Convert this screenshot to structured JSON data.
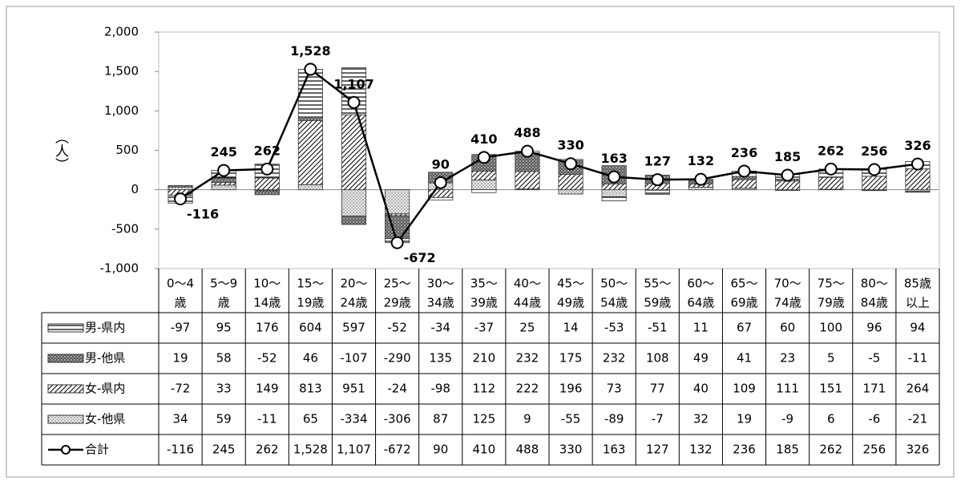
{
  "chart_data": {
    "type": "bar",
    "y_label": "（人）",
    "categories": [
      [
        "0～4",
        "歳"
      ],
      [
        "5～9",
        "歳"
      ],
      [
        "10～",
        "14歳"
      ],
      [
        "15～",
        "19歳"
      ],
      [
        "20～",
        "24歳"
      ],
      [
        "25～",
        "29歳"
      ],
      [
        "30～",
        "34歳"
      ],
      [
        "35～",
        "39歳"
      ],
      [
        "40～",
        "44歳"
      ],
      [
        "45～",
        "49歳"
      ],
      [
        "50～",
        "54歳"
      ],
      [
        "55～",
        "59歳"
      ],
      [
        "60～",
        "64歳"
      ],
      [
        "65～",
        "69歳"
      ],
      [
        "70～",
        "74歳"
      ],
      [
        "75～",
        "79歳"
      ],
      [
        "80～",
        "84歳"
      ],
      [
        "85歳",
        "以上"
      ]
    ],
    "ylim": [
      -1000,
      2000
    ],
    "yticks": [
      {
        "value": -1000,
        "label": "-1,000"
      },
      -500,
      0,
      500,
      {
        "value": 1000,
        "label": "1,000"
      },
      {
        "value": 1500,
        "label": "1,500"
      },
      {
        "value": 2000,
        "label": "2,000"
      }
    ],
    "negative_tick_color": "#e00000",
    "series": [
      {
        "name": "男-県内",
        "pattern": "horizontal",
        "values": [
          -97,
          95,
          176,
          604,
          597,
          -52,
          -34,
          -37,
          25,
          14,
          -53,
          -51,
          11,
          67,
          60,
          100,
          96,
          94
        ]
      },
      {
        "name": "男-他県",
        "pattern": "dense",
        "values": [
          19,
          58,
          -52,
          46,
          -107,
          -290,
          135,
          210,
          232,
          175,
          232,
          108,
          49,
          41,
          23,
          5,
          -5,
          -11
        ]
      },
      {
        "name": "女-県内",
        "pattern": "diagonal",
        "values": [
          -72,
          33,
          149,
          813,
          951,
          -24,
          -98,
          112,
          222,
          196,
          73,
          77,
          40,
          109,
          111,
          151,
          171,
          264
        ]
      },
      {
        "name": "女-他県",
        "pattern": "dotted",
        "values": [
          34,
          59,
          -11,
          65,
          -334,
          -306,
          87,
          125,
          9,
          -55,
          -89,
          -7,
          32,
          19,
          -9,
          6,
          -6,
          -21
        ]
      },
      {
        "name": "合計",
        "type": "line",
        "color": "#000000",
        "values": [
          -116,
          245,
          262,
          1528,
          1107,
          -672,
          90,
          410,
          488,
          330,
          163,
          127,
          132,
          236,
          185,
          262,
          256,
          326
        ],
        "value_labels": [
          "-116",
          "245",
          "262",
          "1,528",
          "1,107",
          "-672",
          "90",
          "410",
          "488",
          "330",
          "163",
          "127",
          "132",
          "236",
          "185",
          "262",
          "256",
          "326"
        ]
      }
    ]
  }
}
